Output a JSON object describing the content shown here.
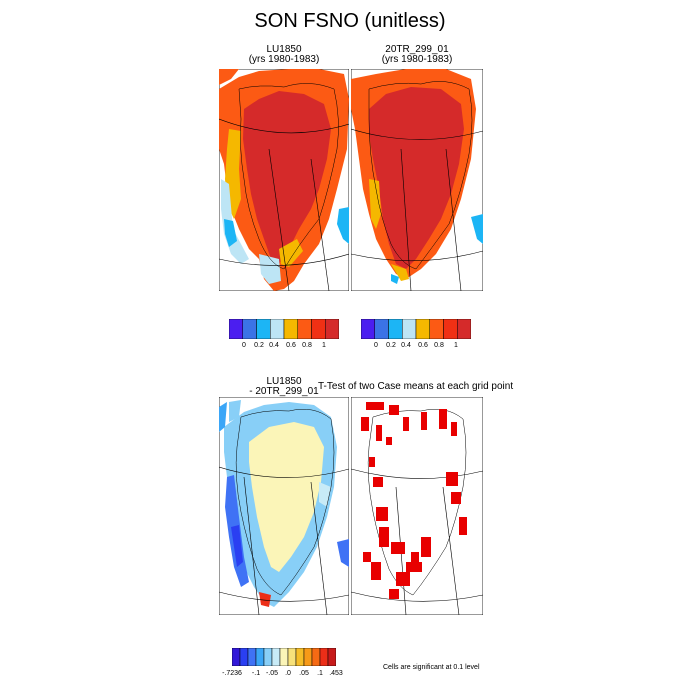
{
  "figure": {
    "title": "SON FSNO (unitless)"
  },
  "panels": {
    "lu1850": {
      "name_line": "LU1850",
      "years_line": "(yrs 1980-1983)"
    },
    "tr20": {
      "name_line": "20TR_299_01",
      "years_line": "(yrs 1980-1983)"
    },
    "diff": {
      "line1": "LU1850",
      "line2": "- 20TR_299_01"
    },
    "ttest": {
      "title": "T-Test of two Case means at each grid point"
    }
  },
  "colorbar_top": {
    "colors": [
      "#4b1ef0",
      "#3b73e6",
      "#1cb5f5",
      "#bde5f5",
      "#f5b800",
      "#fc5a14",
      "#f03014",
      "#d52a2a"
    ],
    "labels": [
      "0",
      "0.2",
      "0.4",
      "0.6",
      "0.8",
      "1"
    ]
  },
  "colorbar_diff": {
    "colors": [
      "#3218d8",
      "#2a3ff2",
      "#3f72f5",
      "#3aa6f7",
      "#88cff7",
      "#c8ebf7",
      "#fbf5b8",
      "#f7e17a",
      "#f5bd28",
      "#f79a18",
      "#f56a14",
      "#ec2e18",
      "#c71a1a"
    ],
    "labels": [
      "-.7236",
      "-.1",
      "-.05",
      ".0",
      ".05",
      ".1",
      ".453"
    ]
  },
  "significance": {
    "note": "Cells are significant at 0.1 level",
    "color": "#e80000"
  }
}
